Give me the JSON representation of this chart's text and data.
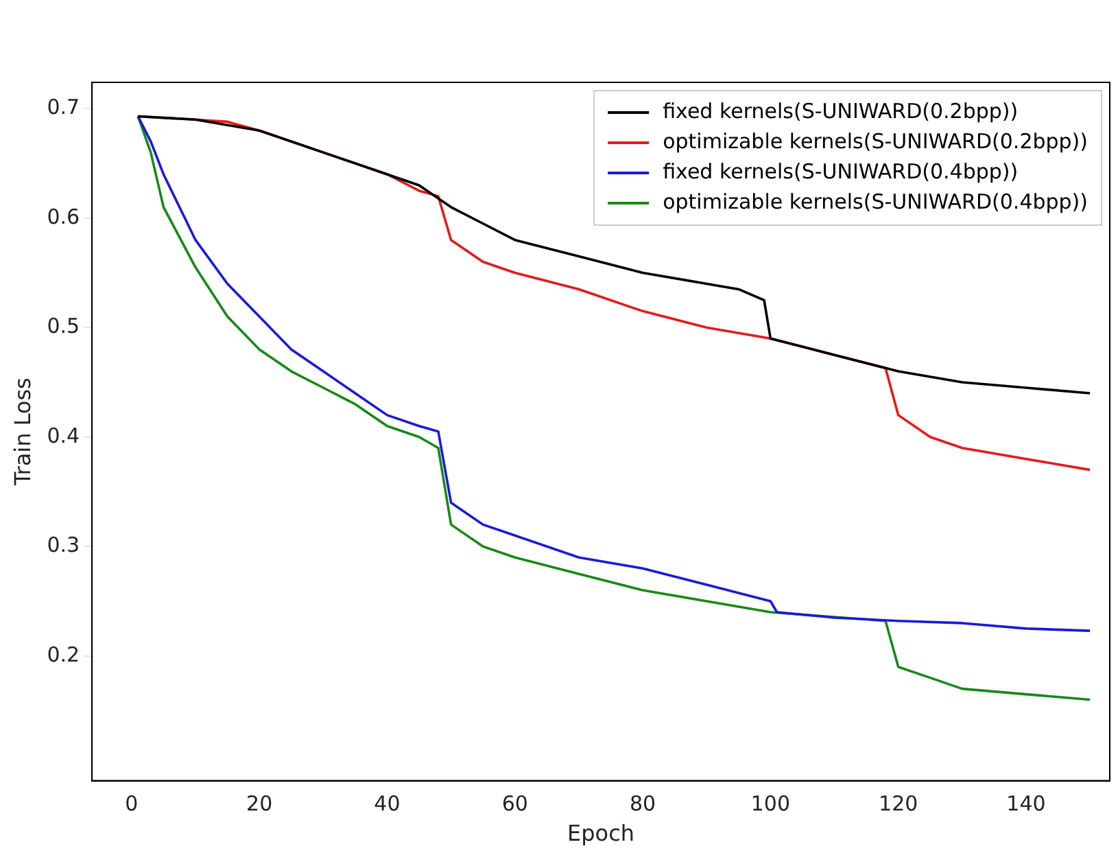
{
  "chart_data": {
    "type": "line",
    "xlabel": "Epoch",
    "ylabel": "Train Loss",
    "xlim": [
      -6.2,
      153.1
    ],
    "ylim": [
      0.086,
      0.724
    ],
    "xticks": [
      0,
      20,
      40,
      60,
      80,
      100,
      120,
      140
    ],
    "yticks": [
      0.2,
      0.3,
      0.4,
      0.5,
      0.6,
      0.7
    ],
    "grid": false,
    "legend": "top right",
    "marker": "none",
    "line_style": "solid",
    "series": [
      {
        "name": "fixed kernels(S-UNIWARD(0.2bpp))",
        "color": "#000000",
        "x": [
          1,
          10,
          20,
          30,
          40,
          45,
          50,
          55,
          60,
          70,
          80,
          90,
          95,
          99,
          100,
          110,
          120,
          130,
          140,
          150
        ],
        "values": [
          0.693,
          0.69,
          0.68,
          0.66,
          0.64,
          0.63,
          0.61,
          0.595,
          0.58,
          0.565,
          0.55,
          0.54,
          0.535,
          0.525,
          0.49,
          0.475,
          0.46,
          0.45,
          0.445,
          0.44
        ]
      },
      {
        "name": "optimizable kernels(S-UNIWARD(0.2bpp))",
        "color": "#e41a1c",
        "x": [
          1,
          10,
          15,
          20,
          30,
          40,
          45,
          48,
          50,
          55,
          60,
          70,
          80,
          90,
          100,
          110,
          118,
          120,
          125,
          130,
          140,
          150
        ],
        "values": [
          0.693,
          0.69,
          0.688,
          0.68,
          0.66,
          0.64,
          0.625,
          0.62,
          0.58,
          0.56,
          0.55,
          0.535,
          0.515,
          0.5,
          0.49,
          0.475,
          0.463,
          0.42,
          0.4,
          0.39,
          0.38,
          0.37
        ]
      },
      {
        "name": "fixed kernels(S-UNIWARD(0.4bpp))",
        "color": "#1a1adc",
        "x": [
          1,
          3,
          5,
          10,
          15,
          20,
          25,
          30,
          35,
          40,
          45,
          48,
          50,
          55,
          60,
          70,
          80,
          90,
          100,
          101,
          110,
          120,
          130,
          140,
          150
        ],
        "values": [
          0.693,
          0.67,
          0.64,
          0.58,
          0.54,
          0.51,
          0.48,
          0.46,
          0.44,
          0.42,
          0.41,
          0.405,
          0.34,
          0.32,
          0.31,
          0.29,
          0.28,
          0.265,
          0.25,
          0.24,
          0.235,
          0.232,
          0.23,
          0.225,
          0.223
        ]
      },
      {
        "name": "optimizable kernels(S-UNIWARD(0.4bpp))",
        "color": "#178a17",
        "x": [
          1,
          3,
          5,
          10,
          15,
          20,
          25,
          30,
          35,
          40,
          45,
          48,
          50,
          55,
          60,
          70,
          80,
          90,
          100,
          118,
          120,
          125,
          130,
          140,
          150
        ],
        "values": [
          0.693,
          0.66,
          0.61,
          0.555,
          0.51,
          0.48,
          0.46,
          0.445,
          0.43,
          0.41,
          0.4,
          0.39,
          0.32,
          0.3,
          0.29,
          0.275,
          0.26,
          0.25,
          0.24,
          0.232,
          0.19,
          0.18,
          0.17,
          0.165,
          0.16
        ]
      }
    ]
  }
}
